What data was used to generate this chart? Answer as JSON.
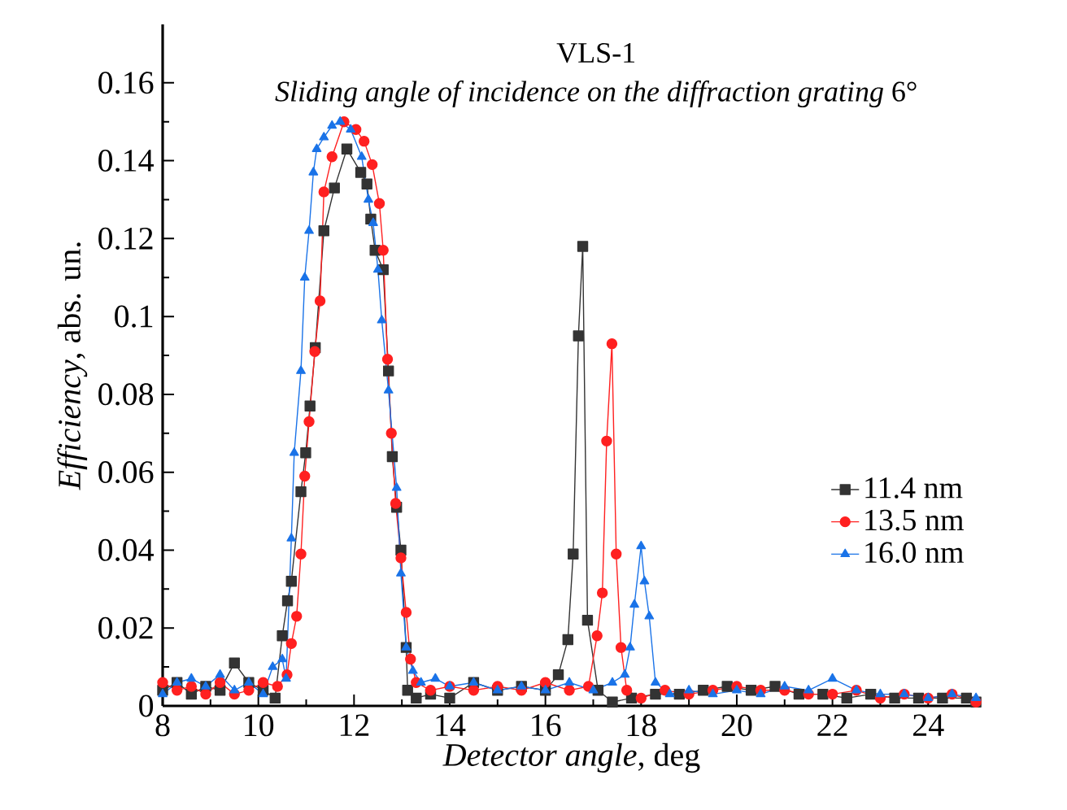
{
  "chart_data": {
    "type": "line",
    "title": "VLS-1",
    "subtitle": "*Sliding angle of incidence on the diffraction grating* 6°",
    "xlabel": "*Detector angle*, deg",
    "ylabel": "*Efficiency*, abs. un.",
    "xlim": [
      8,
      25.1
    ],
    "ylim": [
      0,
      0.175
    ],
    "xticks": [
      8,
      10,
      12,
      14,
      16,
      18,
      20,
      22,
      24
    ],
    "yticks": [
      0,
      0.02,
      0.04,
      0.06,
      0.08,
      0.1,
      0.12,
      0.14,
      0.16
    ],
    "legend": "right",
    "grid": false,
    "series": [
      {
        "name": "11.4 nm",
        "color": "#333333",
        "marker": "square",
        "x": [
          8.0,
          8.3,
          8.6,
          8.9,
          9.2,
          9.5,
          9.8,
          10.1,
          10.35,
          10.5,
          10.61,
          10.69,
          10.89,
          10.99,
          11.08,
          11.19,
          11.37,
          11.59,
          11.85,
          12.14,
          12.27,
          12.35,
          12.44,
          12.61,
          12.72,
          12.8,
          12.89,
          12.98,
          13.09,
          13.12,
          13.3,
          13.6,
          14,
          14.5,
          15,
          15.5,
          16,
          16.27,
          16.47,
          16.58,
          16.69,
          16.78,
          16.88,
          17.1,
          17.4,
          17.8,
          18.3,
          18.8,
          19.3,
          19.8,
          20.3,
          20.8,
          21.3,
          21.8,
          22.3,
          22.8,
          23.3,
          23.8,
          24.3,
          24.8,
          25
        ],
        "values": [
          0.004,
          0.006,
          0.003,
          0.005,
          0.004,
          0.011,
          0.006,
          0.004,
          0.002,
          0.018,
          0.027,
          0.032,
          0.055,
          0.065,
          0.077,
          0.092,
          0.122,
          0.133,
          0.143,
          0.137,
          0.134,
          0.125,
          0.117,
          0.112,
          0.086,
          0.064,
          0.051,
          0.04,
          0.015,
          0.004,
          0.002,
          0.003,
          0.002,
          0.006,
          0.004,
          0.005,
          0.004,
          0.008,
          0.017,
          0.039,
          0.095,
          0.118,
          0.022,
          0.004,
          0.001,
          0.002,
          0.003,
          0.003,
          0.004,
          0.005,
          0.004,
          0.005,
          0.003,
          0.003,
          0.002,
          0.003,
          0.002,
          0.002,
          0.002,
          0.002,
          0.001
        ]
      },
      {
        "name": "13.5 nm",
        "color": "#ff2020",
        "marker": "circle",
        "x": [
          8.0,
          8.3,
          8.6,
          8.9,
          9.2,
          9.5,
          9.8,
          10.1,
          10.4,
          10.6,
          10.69,
          10.8,
          10.89,
          10.97,
          11.06,
          11.18,
          11.29,
          11.37,
          11.54,
          11.79,
          12.04,
          12.21,
          12.38,
          12.53,
          12.61,
          12.7,
          12.78,
          12.87,
          12.98,
          13.09,
          13.18,
          13.3,
          13.6,
          14,
          14.5,
          15,
          15.5,
          16,
          16.5,
          16.9,
          17.08,
          17.19,
          17.28,
          17.39,
          17.48,
          17.58,
          17.7,
          18,
          18.5,
          19,
          19.5,
          20,
          20.5,
          21,
          21.5,
          22,
          22.5,
          23,
          23.5,
          24,
          24.5,
          25
        ],
        "values": [
          0.006,
          0.004,
          0.005,
          0.003,
          0.006,
          0.003,
          0.004,
          0.006,
          0.005,
          0.008,
          0.016,
          0.023,
          0.039,
          0.059,
          0.073,
          0.091,
          0.104,
          0.132,
          0.141,
          0.15,
          0.148,
          0.145,
          0.139,
          0.129,
          0.117,
          0.089,
          0.07,
          0.052,
          0.038,
          0.024,
          0.012,
          0.006,
          0.004,
          0.005,
          0.004,
          0.005,
          0.004,
          0.006,
          0.004,
          0.005,
          0.018,
          0.029,
          0.068,
          0.093,
          0.039,
          0.015,
          0.004,
          0.002,
          0.004,
          0.003,
          0.004,
          0.005,
          0.004,
          0.004,
          0.003,
          0.003,
          0.004,
          0.002,
          0.003,
          0.002,
          0.003,
          0.001
        ]
      },
      {
        "name": "16.0 nm",
        "color": "#1a73e8",
        "marker": "triangle",
        "x": [
          8.0,
          8.3,
          8.6,
          8.9,
          9.2,
          9.5,
          9.8,
          10.1,
          10.3,
          10.5,
          10.58,
          10.69,
          10.75,
          10.89,
          10.97,
          11.06,
          11.15,
          11.22,
          11.37,
          11.54,
          11.71,
          11.93,
          12.16,
          12.3,
          12.4,
          12.5,
          12.58,
          12.72,
          12.89,
          12.98,
          13.09,
          13.23,
          13.4,
          13.7,
          14,
          14.5,
          15,
          15.5,
          16,
          16.5,
          17,
          17.4,
          17.66,
          17.77,
          17.86,
          18.0,
          18.07,
          18.17,
          18.3,
          18.6,
          19,
          19.5,
          20,
          20.5,
          21,
          21.5,
          22,
          22.5,
          23,
          23.5,
          24,
          24.5,
          25
        ],
        "values": [
          0.003,
          0.006,
          0.007,
          0.005,
          0.008,
          0.004,
          0.006,
          0.003,
          0.01,
          0.012,
          0.007,
          0.043,
          0.065,
          0.086,
          0.11,
          0.122,
          0.137,
          0.143,
          0.146,
          0.149,
          0.15,
          0.148,
          0.141,
          0.13,
          0.124,
          0.112,
          0.099,
          0.081,
          0.056,
          0.034,
          0.015,
          0.009,
          0.006,
          0.007,
          0.005,
          0.006,
          0.004,
          0.005,
          0.004,
          0.006,
          0.004,
          0.006,
          0.008,
          0.015,
          0.026,
          0.041,
          0.032,
          0.023,
          0.006,
          0.003,
          0.004,
          0.003,
          0.004,
          0.003,
          0.005,
          0.004,
          0.007,
          0.004,
          0.003,
          0.003,
          0.002,
          0.003,
          0.002
        ]
      }
    ]
  }
}
